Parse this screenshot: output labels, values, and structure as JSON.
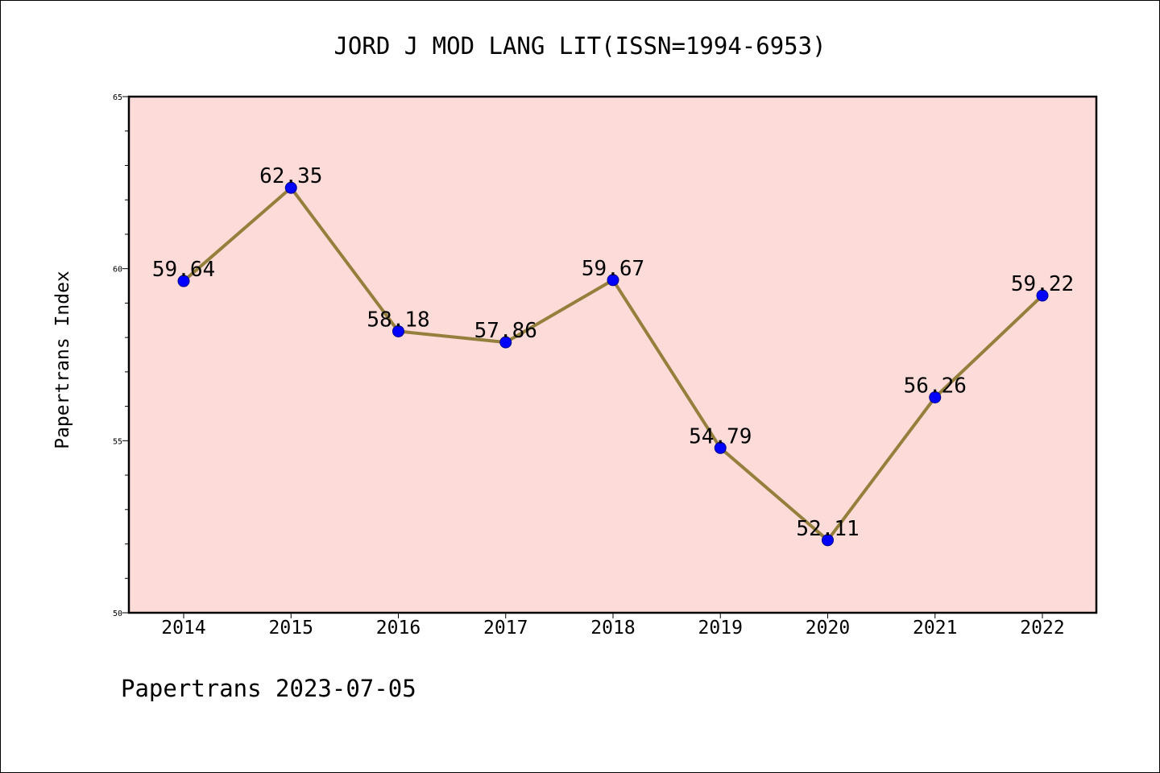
{
  "chart_data": {
    "type": "line",
    "title": "JORD J MOD LANG LIT(ISSN=1994-6953)",
    "xlabel": "",
    "ylabel": "Papertrans Index",
    "ylim": [
      50,
      65
    ],
    "yticks": [
      "50",
      "55",
      "60",
      "65"
    ],
    "categories": [
      "2014",
      "2015",
      "2016",
      "2017",
      "2018",
      "2019",
      "2020",
      "2021",
      "2022"
    ],
    "values": [
      59.64,
      62.35,
      58.18,
      57.86,
      59.67,
      54.79,
      52.11,
      56.26,
      59.22
    ],
    "data_labels": [
      "59.64",
      "62.35",
      "58.18",
      "57.86",
      "59.67",
      "54.79",
      "52.11",
      "56.26",
      "59.22"
    ],
    "grid": false,
    "colors": {
      "plot_background": "#fddbd8",
      "line": "#94803c",
      "marker": "#0000ff"
    }
  },
  "footer": "Papertrans 2023-07-05"
}
